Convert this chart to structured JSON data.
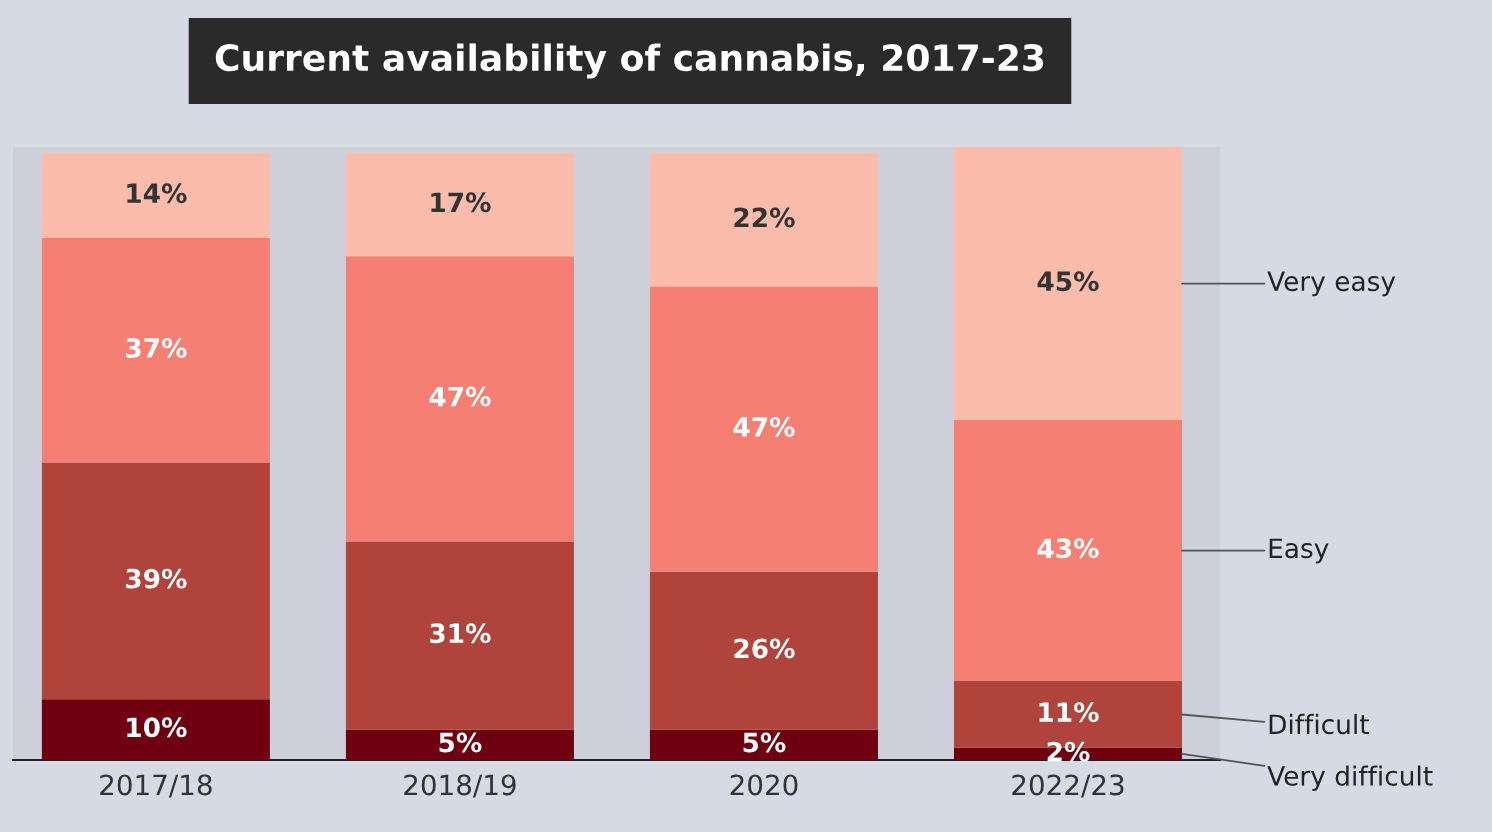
{
  "chart_data": {
    "type": "bar",
    "title": "Current availability of cannabis, 2017-23",
    "categories": [
      "2017/18",
      "2018/19",
      "2020",
      "2022/23"
    ],
    "stacked": true,
    "tick_labels": "x",
    "series": [
      {
        "name": "Very difficult",
        "color": "#6e0010",
        "values": [
          10,
          5,
          5,
          2
        ],
        "value_labels": [
          "10%",
          "5%",
          "5%",
          "2%"
        ]
      },
      {
        "name": "Difficult",
        "color": "#b0443c",
        "values": [
          39,
          31,
          26,
          11
        ],
        "value_labels": [
          "39%",
          "31%",
          "26%",
          "11%"
        ]
      },
      {
        "name": "Easy",
        "color": "#f47f72",
        "values": [
          37,
          47,
          47,
          43
        ],
        "value_labels": [
          "37%",
          "47%",
          "47%",
          "43%"
        ]
      },
      {
        "name": "Very easy",
        "color": "#fbbcab",
        "values": [
          14,
          17,
          22,
          45
        ],
        "value_labels": [
          "14%",
          "17%",
          "22%",
          "45%"
        ]
      }
    ]
  }
}
